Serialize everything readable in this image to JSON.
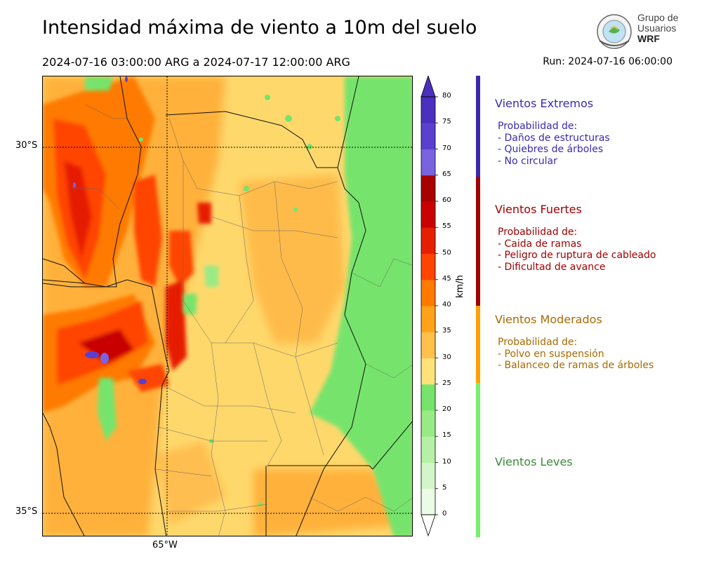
{
  "header": {
    "title": "Intensidad máxima de viento a 10m del suelo",
    "period": "2024-07-16 03:00:00 ARG  a  2024-07-17 12:00:00 ARG",
    "run": "Run: 2024-07-16 06:00:00"
  },
  "logo": {
    "line1": "Grupo de",
    "line2": "Usuarios",
    "line3": "WRF"
  },
  "map": {
    "lat_labels": [
      "30°S",
      "35°S"
    ],
    "lon_labels": [
      "65°W"
    ]
  },
  "colorbar": {
    "units": "km/h",
    "ticks": [
      "0",
      "5",
      "10",
      "15",
      "20",
      "25",
      "30",
      "35",
      "40",
      "45",
      "50",
      "55",
      "60",
      "65",
      "70",
      "75",
      "80"
    ],
    "colors": [
      "#eafbe6",
      "#d2f6c9",
      "#b6f0a7",
      "#98ea85",
      "#76e46c",
      "#ffe27a",
      "#ffc04c",
      "#ffa319",
      "#ff7a00",
      "#ff4400",
      "#e61f00",
      "#c90000",
      "#a80000",
      "#7a63e0",
      "#5a40d0",
      "#4b30c0"
    ]
  },
  "categories": [
    {
      "title": "Vientos Extremos",
      "color": "#3a2ab0",
      "lines": [
        "Probabilidad de:",
        "- Daños de estructuras",
        "- Quiebres de árboles",
        "- No circular"
      ]
    },
    {
      "title": "Vientos Fuertes",
      "color": "#a00000",
      "lines": [
        "Probabilidad de:",
        "- Caida de ramas",
        "- Peligro de ruptura de cableado",
        "- Dificultad de avance"
      ]
    },
    {
      "title": "Vientos Moderados",
      "color": "#a86a00",
      "lines": [
        "Probabilidad de:",
        "- Polvo en suspensión",
        "- Balanceo de ramas de árboles"
      ]
    },
    {
      "title": "Vientos Leves",
      "color": "#3a8a3a",
      "lines": []
    }
  ],
  "category_bar_colors": [
    "#3a2ab0",
    "#a00000",
    "#ff9f00",
    "#76f06c"
  ]
}
